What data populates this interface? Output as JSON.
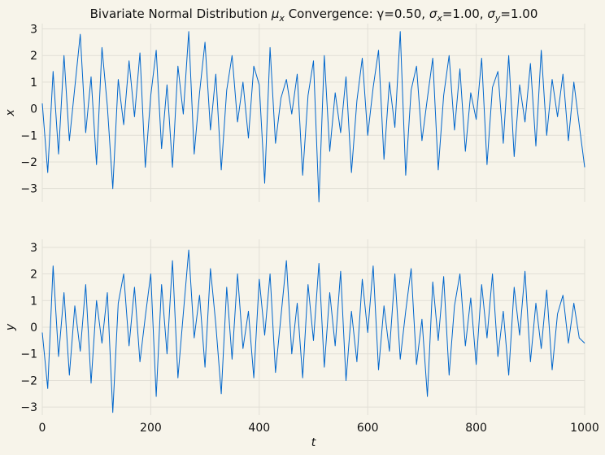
{
  "chart_data": [
    {
      "type": "line",
      "title": "Bivariate Normal Distribution μx Convergence: γ=0.50, σx=1.00, σy=1.00",
      "title_parts": {
        "prefix": "Bivariate Normal Distribution ",
        "mu": "μ",
        "mu_sub": "x",
        "middle": " Convergence: γ=0.50, ",
        "sigma_x": "σ",
        "sigma_x_sub": "x",
        "sigma_x_val": "=1.00, ",
        "sigma_y": "σ",
        "sigma_y_sub": "y",
        "sigma_y_val": "=1.00"
      },
      "xlabel": "",
      "ylabel": "x",
      "xlim": [
        0,
        1000
      ],
      "ylim": [
        -3.5,
        3.2
      ],
      "yticks": [
        -3,
        -2,
        -1,
        0,
        1,
        2,
        3
      ],
      "xticks": [
        0,
        200,
        400,
        600,
        800,
        1000
      ],
      "grid": true,
      "series": [
        {
          "color": "#0066cc",
          "x": [
            0,
            10,
            20,
            30,
            40,
            50,
            60,
            70,
            80,
            90,
            100,
            110,
            120,
            130,
            140,
            150,
            160,
            170,
            180,
            190,
            200,
            210,
            220,
            230,
            240,
            250,
            260,
            270,
            280,
            290,
            300,
            310,
            320,
            330,
            340,
            350,
            360,
            370,
            380,
            390,
            400,
            410,
            420,
            430,
            440,
            450,
            460,
            470,
            480,
            490,
            500,
            510,
            520,
            530,
            540,
            550,
            560,
            570,
            580,
            590,
            600,
            610,
            620,
            630,
            640,
            650,
            660,
            670,
            680,
            690,
            700,
            710,
            720,
            730,
            740,
            750,
            760,
            770,
            780,
            790,
            800,
            810,
            820,
            830,
            840,
            850,
            860,
            870,
            880,
            890,
            900,
            910,
            920,
            930,
            940,
            950,
            960,
            970,
            980,
            990,
            1000
          ],
          "values": [
            0.2,
            -2.4,
            1.4,
            -1.7,
            2.0,
            -1.2,
            0.8,
            2.8,
            -0.9,
            1.2,
            -2.1,
            2.3,
            0.1,
            -3.0,
            1.1,
            -0.6,
            1.8,
            -0.3,
            2.1,
            -2.2,
            0.5,
            2.2,
            -1.5,
            0.9,
            -2.2,
            1.6,
            -0.2,
            2.9,
            -1.7,
            0.6,
            2.5,
            -0.8,
            1.3,
            -2.3,
            0.7,
            2.0,
            -0.5,
            1.0,
            -1.1,
            1.6,
            0.9,
            -2.8,
            2.3,
            -1.3,
            0.4,
            1.1,
            -0.2,
            1.3,
            -2.5,
            0.5,
            1.8,
            -3.5,
            2.0,
            -1.6,
            0.6,
            -0.9,
            1.2,
            -2.4,
            0.3,
            1.9,
            -1.0,
            0.8,
            2.2,
            -1.9,
            1.0,
            -0.7,
            2.9,
            -2.5,
            0.7,
            1.6,
            -1.2,
            0.4,
            1.9,
            -2.3,
            0.5,
            2.0,
            -0.8,
            1.5,
            -1.6,
            0.6,
            -0.4,
            1.9,
            -2.1,
            0.8,
            1.4,
            -1.3,
            2.0,
            -1.8,
            0.9,
            -0.5,
            1.7,
            -1.4,
            2.2,
            -1.0,
            1.1,
            -0.3,
            1.3,
            -1.2,
            1.0,
            -0.6,
            -2.2
          ]
        }
      ]
    },
    {
      "type": "line",
      "title": "",
      "xlabel": "t",
      "ylabel": "y",
      "xlim": [
        0,
        1000
      ],
      "ylim": [
        -3.3,
        3.3
      ],
      "yticks": [
        -3,
        -2,
        -1,
        0,
        1,
        2,
        3
      ],
      "xticks": [
        0,
        200,
        400,
        600,
        800,
        1000
      ],
      "grid": true,
      "series": [
        {
          "color": "#0066cc",
          "x": [
            0,
            10,
            20,
            30,
            40,
            50,
            60,
            70,
            80,
            90,
            100,
            110,
            120,
            130,
            140,
            150,
            160,
            170,
            180,
            190,
            200,
            210,
            220,
            230,
            240,
            250,
            260,
            270,
            280,
            290,
            300,
            310,
            320,
            330,
            340,
            350,
            360,
            370,
            380,
            390,
            400,
            410,
            420,
            430,
            440,
            450,
            460,
            470,
            480,
            490,
            500,
            510,
            520,
            530,
            540,
            550,
            560,
            570,
            580,
            590,
            600,
            610,
            620,
            630,
            640,
            650,
            660,
            670,
            680,
            690,
            700,
            710,
            720,
            730,
            740,
            750,
            760,
            770,
            780,
            790,
            800,
            810,
            820,
            830,
            840,
            850,
            860,
            870,
            880,
            890,
            900,
            910,
            920,
            930,
            940,
            950,
            960,
            970,
            980,
            990,
            1000
          ],
          "values": [
            -0.2,
            -2.3,
            2.3,
            -1.1,
            1.3,
            -1.8,
            0.8,
            -0.9,
            1.6,
            -2.1,
            1.0,
            -0.6,
            1.3,
            -3.2,
            0.9,
            2.0,
            -0.7,
            1.5,
            -1.3,
            0.4,
            2.0,
            -2.6,
            1.6,
            -1.0,
            2.5,
            -1.9,
            0.5,
            2.9,
            -0.4,
            1.2,
            -1.5,
            2.2,
            0.1,
            -2.5,
            1.5,
            -1.2,
            2.0,
            -0.8,
            0.6,
            -1.9,
            1.8,
            -0.3,
            2.0,
            -1.7,
            0.4,
            2.5,
            -1.0,
            0.9,
            -1.9,
            1.6,
            -0.5,
            2.4,
            -1.5,
            1.3,
            -0.7,
            2.1,
            -2.0,
            0.6,
            -1.3,
            1.8,
            -0.2,
            2.3,
            -1.6,
            0.8,
            -0.9,
            2.0,
            -1.2,
            0.6,
            2.2,
            -1.4,
            0.3,
            -2.6,
            1.7,
            -0.5,
            1.9,
            -1.8,
            0.8,
            2.0,
            -0.7,
            1.1,
            -1.4,
            1.6,
            -0.4,
            2.0,
            -1.1,
            0.6,
            -1.8,
            1.5,
            -0.3,
            2.1,
            -1.3,
            0.9,
            -0.8,
            1.4,
            -1.6,
            0.5,
            1.2,
            -0.6,
            0.9,
            -0.4,
            -0.6
          ]
        }
      ]
    }
  ]
}
